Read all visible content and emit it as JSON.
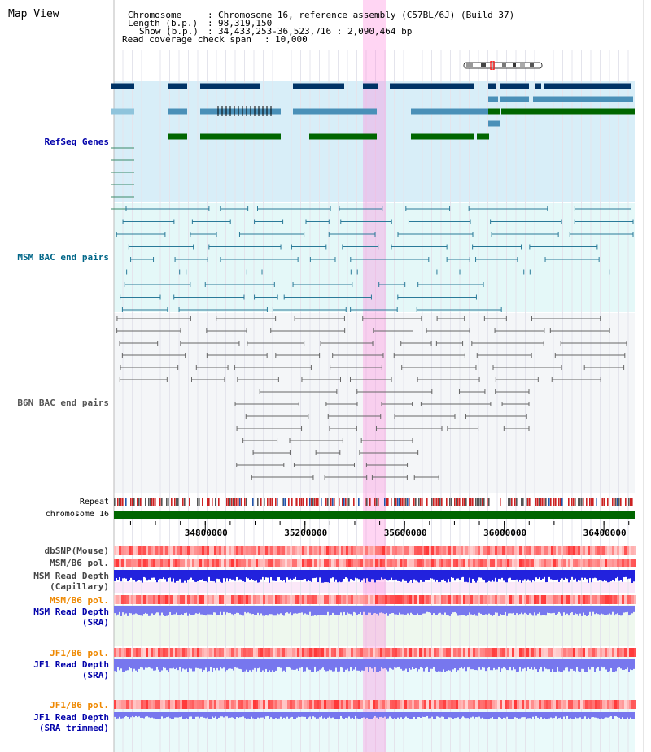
{
  "page": {
    "title": "Map View"
  },
  "info": {
    "chromosome_label": "Chromosome",
    "chromosome_value": "Chromosome 16, reference assembly (C57BL/6J) (Build 37)",
    "length_label": "Length (b.p.)",
    "length_value": "98,319,150",
    "show_label": "Show (b.p.)",
    "show_value": "34,433,253-36,523,716 : 2,090,464 bp",
    "coverage_label": "Read coverage check span",
    "coverage_value": "10,000",
    "sep": ":"
  },
  "tracks": {
    "refseq": "RefSeq Genes",
    "msm_bac": "MSM BAC end pairs",
    "b6n_bac": "B6N BAC end pairs",
    "repeat": "Repeat",
    "chromosome": "chromosome 16",
    "dbsnp": "dbSNP(Mouse)",
    "msm_b6_pol_1": "MSM/B6 pol.",
    "msm_read_depth_cap_1": "MSM Read Depth",
    "msm_read_depth_cap_2": "(Capillary)",
    "msm_b6_pol_2": "MSM/B6 pol.",
    "msm_read_depth_sra_1": "MSM Read Depth",
    "msm_read_depth_sra_2": "(SRA)",
    "jf1_b6_pol_1": "JF1/B6 pol.",
    "jf1_read_depth_sra_1": "JF1 Read Depth",
    "jf1_read_depth_sra_2": "(SRA)",
    "jf1_b6_pol_2": "JF1/B6 pol.",
    "jf1_read_depth_trim_1": "JF1 Read Depth",
    "jf1_read_depth_trim_2": "(SRA trimmed)"
  },
  "axis": {
    "ticks": [
      "34800000",
      "35200000",
      "35600000",
      "36000000",
      "36400000"
    ],
    "tick_values": [
      34800000,
      35200000,
      35600000,
      36000000,
      36400000
    ],
    "range": [
      34433253,
      36523716
    ]
  },
  "colors": {
    "refseq_label": "#0000aa",
    "msm_label": "#006688",
    "b6n_label": "#555555",
    "pol_label_orange": "#ee8800",
    "depth_label": "#0000aa",
    "highlight": "#ff88dd",
    "refseq_bg": "#d8eef8",
    "msm_bg": "#e4f8f8",
    "b6n_bg": "#f4f6f8",
    "chromosome_bar": "#006600",
    "dark_gene": "#003366",
    "mid_gene": "#4a90b8",
    "green_gene": "#006600",
    "msm_bac": "#2a7a99",
    "b6n_bac": "#666666",
    "depth_blue": "#2222dd",
    "depth_light_blue": "#7777ee",
    "pol_red": "#ff4444"
  }
}
